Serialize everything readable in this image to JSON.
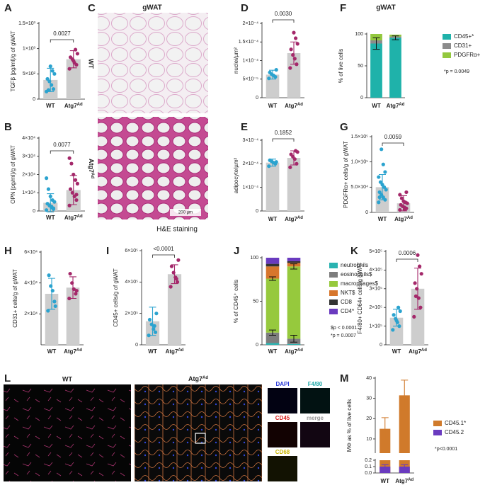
{
  "chart_data": [
    {
      "type": "bar_dots",
      "label": "A",
      "ylabel": "TGFβ [pg/ml]/g of gWAT",
      "categories": [
        "WT",
        "Atg7"
      ],
      "category_sup": [
        null,
        "Ad"
      ],
      "colors": [
        "#2ba3cf",
        "#a4286a"
      ],
      "values": [
        380,
        790
      ],
      "errors": [
        230,
        170
      ],
      "points": [
        [
          150,
          200,
          280,
          350,
          400,
          500,
          560,
          650,
          180
        ],
        [
          600,
          680,
          720,
          790,
          830,
          900,
          980,
          760
        ]
      ],
      "ylim": [
        0,
        1500
      ],
      "yticks": [
        0,
        {
          "value": 500,
          "label": "5×10²"
        },
        {
          "value": 1000,
          "label": "1×10³"
        },
        {
          "value": 1500,
          "label": "1.5×10³"
        }
      ],
      "p_value": "0.0027"
    },
    {
      "type": "bar_dots",
      "label": "B",
      "ylabel": "OPN [pg/ml]/g of gWAT",
      "categories": [
        "WT",
        "Atg7"
      ],
      "category_sup": [
        null,
        "Ad"
      ],
      "colors": [
        "#2ba3cf",
        "#a4286a"
      ],
      "values": [
        4500,
        11500
      ],
      "errors": [
        5000,
        8000
      ],
      "points": [
        [
          500,
          1000,
          2000,
          3000,
          4000,
          5000,
          6000,
          8000,
          12000,
          18000,
          1500,
          2500
        ],
        [
          3000,
          6000,
          8000,
          10000,
          12000,
          15000,
          17000,
          20000,
          26000,
          29000,
          9000
        ]
      ],
      "ylim": [
        0,
        40000
      ],
      "yticks": [
        0,
        {
          "value": 10000,
          "label": "1×10⁴"
        },
        {
          "value": 20000,
          "label": "2×10⁴"
        },
        {
          "value": 30000,
          "label": "3×10⁴"
        },
        {
          "value": 40000,
          "label": "4×10⁴"
        }
      ],
      "p_value": "0.0077"
    },
    {
      "type": "bar_dots",
      "label": "D",
      "ylabel": "nuclei/µm²",
      "categories": [
        "WT",
        "Atg7"
      ],
      "category_sup": [
        null,
        "Ad"
      ],
      "colors": [
        "#2ba3cf",
        "#a4286a"
      ],
      "values": [
        6.2e-05,
        0.00012
      ],
      "errors": [
        1.2e-05,
        3e-05
      ],
      "points": [
        [
          5.2e-05,
          5.6e-05,
          6e-05,
          6.3e-05,
          6.8e-05,
          7.5e-05
        ],
        [
          8e-05,
          9e-05,
          0.000105,
          0.000115,
          0.00013,
          0.000145,
          0.00016,
          0.000175
        ]
      ],
      "ylim": [
        0,
        0.0002
      ],
      "yticks": [
        0,
        {
          "value": 5e-05,
          "label": "5×10⁻⁵"
        },
        {
          "value": 0.0001,
          "label": "1×10⁻⁴"
        },
        {
          "value": 0.00015,
          "label": "1.5×10⁻⁴"
        },
        {
          "value": 0.0002,
          "label": "2×10⁻⁴"
        }
      ],
      "p_value": "0.0030"
    },
    {
      "type": "bar_dots",
      "label": "E",
      "ylabel": "adipocyte/µm²",
      "categories": [
        "WT",
        "Atg7"
      ],
      "category_sup": [
        null,
        "Ad"
      ],
      "colors": [
        "#2ba3cf",
        "#a4286a"
      ],
      "values": [
        0.000205,
        0.000225
      ],
      "errors": [
        1.5e-05,
        3e-05
      ],
      "points": [
        [
          0.00019,
          0.0002,
          0.000205,
          0.00021,
          0.000215,
          0.000208
        ],
        [
          0.000185,
          0.0002,
          0.00022,
          0.00023,
          0.00024,
          0.00025,
          0.000255
        ]
      ],
      "ylim": [
        0,
        0.0003
      ],
      "yticks": [
        0,
        {
          "value": 0.0001,
          "label": "1×10⁻⁴"
        },
        {
          "value": 0.0002,
          "label": "2×10⁻⁴"
        },
        {
          "value": 0.0003,
          "label": "3×10⁻⁴"
        }
      ],
      "p_value": "0.1852"
    },
    {
      "type": "stacked_bar",
      "label": "F",
      "title": "gWAT",
      "ylabel": "% of live cells",
      "categories": [
        "WT",
        "Atg7"
      ],
      "category_sup": [
        null,
        "Ad"
      ],
      "series": [
        {
          "name": "CD45+*",
          "color": "#1fb2aa",
          "values": [
            85,
            94
          ],
          "errors": [
            9,
            3
          ]
        },
        {
          "name": "CD31+",
          "color": "#8c8c8c",
          "values": [
            5,
            2
          ]
        },
        {
          "name": "PDGFRα+",
          "color": "#93c83e",
          "values": [
            10,
            3
          ]
        }
      ],
      "ylim": [
        0,
        100
      ],
      "yticks": [
        0,
        50,
        100
      ],
      "notes": [
        "*p = 0.0049"
      ]
    },
    {
      "type": "bar_dots",
      "label": "G",
      "ylabel": "PDGFRα+ cells/g of gWAT",
      "categories": [
        "WT",
        "Atg7"
      ],
      "category_sup": [
        null,
        "Ad"
      ],
      "colors": [
        "#2ba3cf",
        "#a4286a"
      ],
      "values": [
        50000,
        18000
      ],
      "errors": [
        25000,
        15000
      ],
      "points": [
        [
          20000,
          25000,
          30000,
          35000,
          40000,
          45000,
          50000,
          55000,
          60000,
          70000,
          80000,
          95000,
          125000,
          30000
        ],
        [
          5000,
          8000,
          10000,
          12000,
          15000,
          18000,
          20000,
          22000,
          28000,
          35000,
          40000,
          6000
        ]
      ],
      "ylim": [
        0,
        150000
      ],
      "yticks": [
        0,
        {
          "value": 50000,
          "label": "5.0×10⁴"
        },
        {
          "value": 100000,
          "label": "1.0×10⁵"
        },
        {
          "value": 150000,
          "label": "1.5×10⁵"
        }
      ],
      "p_value": "0.0059"
    },
    {
      "type": "bar_dots",
      "label": "H",
      "ylabel": "CD31+ cells/g of gWAT",
      "categories": [
        "WT",
        "Atg7"
      ],
      "category_sup": [
        null,
        "Ad"
      ],
      "colors": [
        "#2ba3cf",
        "#a4286a"
      ],
      "values": [
        33000,
        37000
      ],
      "errors": [
        10000,
        7000
      ],
      "points": [
        [
          22000,
          28000,
          35000,
          38000,
          45000,
          25000
        ],
        [
          30000,
          33000,
          36000,
          40000,
          46000,
          35000
        ]
      ],
      "ylim": [
        0,
        60000
      ],
      "yticks": [
        {
          "value": 20000,
          "label": "2×10⁴"
        },
        {
          "value": 40000,
          "label": "4×10⁴"
        },
        {
          "value": 60000,
          "label": "6×10⁴"
        }
      ]
    },
    {
      "type": "bar_dots",
      "label": "I",
      "ylabel": "CD45+ cells/g of gWAT",
      "categories": [
        "WT",
        "Atg7"
      ],
      "category_sup": [
        null,
        "Ad"
      ],
      "colors": [
        "#2ba3cf",
        "#a4286a"
      ],
      "values": [
        150000,
        450000
      ],
      "errors": [
        90000,
        60000
      ],
      "points": [
        [
          60000,
          80000,
          100000,
          130000,
          160000,
          200000,
          120000
        ],
        [
          370000,
          400000,
          430000,
          460000,
          500000,
          540000,
          420000
        ]
      ],
      "ylim": [
        0,
        600000
      ],
      "yticks": [
        0,
        {
          "value": 200000,
          "label": "2×10⁵"
        },
        {
          "value": 400000,
          "label": "4×10⁵"
        },
        {
          "value": 600000,
          "label": "6×10⁵"
        }
      ],
      "p_value": "<0.0001"
    },
    {
      "type": "stacked_bar",
      "label": "J",
      "ylabel": "% of CD45⁺ cells",
      "categories": [
        "WT",
        "Atg7"
      ],
      "category_sup": [
        null,
        "Ad"
      ],
      "series": [
        {
          "name": "neutrophils",
          "color": "#2ab3b1",
          "values": [
            2,
            1
          ]
        },
        {
          "name": "eosinophils$",
          "color": "#7d7d7d",
          "values": [
            12,
            6
          ],
          "errors": [
            3,
            4
          ]
        },
        {
          "name": "macrophages$",
          "color": "#96c93d",
          "values": [
            62,
            83
          ],
          "errors": [
            2,
            3
          ]
        },
        {
          "name": "NKT$",
          "color": "#d7762c",
          "values": [
            14,
            4
          ]
        },
        {
          "name": "CD8",
          "color": "#333333",
          "values": [
            3,
            2
          ]
        },
        {
          "name": "CD4*",
          "color": "#6a3bbf",
          "values": [
            7,
            4
          ]
        }
      ],
      "ylim": [
        0,
        100
      ],
      "yticks": [
        0,
        50,
        100
      ],
      "notes": [
        "$p < 0.0001",
        "*p = 0.0007"
      ]
    },
    {
      "type": "bar_dots",
      "label": "K",
      "ylabel": "F4/80+ CD64+ cells/g gWAT",
      "categories": [
        "WT",
        "Atg7"
      ],
      "category_sup": [
        null,
        "Ad"
      ],
      "colors": [
        "#2ba3cf",
        "#a4286a"
      ],
      "values": [
        145000,
        300000
      ],
      "errors": [
        45000,
        110000
      ],
      "points": [
        [
          80000,
          100000,
          120000,
          140000,
          160000,
          180000,
          200000,
          130000
        ],
        [
          150000,
          200000,
          250000,
          300000,
          330000,
          380000,
          420000,
          480000,
          260000
        ]
      ],
      "ylim": [
        0,
        500000
      ],
      "yticks": [
        0,
        {
          "value": 100000,
          "label": "1×10⁵"
        },
        {
          "value": 200000,
          "label": "2×10⁵"
        },
        {
          "value": 300000,
          "label": "3×10⁵"
        },
        {
          "value": 400000,
          "label": "4×10⁵"
        },
        {
          "value": 500000,
          "label": "5×10⁵"
        }
      ],
      "p_value": "0.0006"
    },
    {
      "type": "broken_bar",
      "label": "M",
      "ylabel": "MΦ as % of live cells",
      "categories": [
        "WT",
        "Atg7"
      ],
      "category_sup": [
        null,
        "Ad"
      ],
      "series": [
        {
          "name": "CD45.1*",
          "color": "#d07a2b",
          "values": [
            15,
            31.5
          ],
          "errors": [
            5.5,
            7.5
          ]
        },
        {
          "name": "CD45.2",
          "color": "#6a3bbf",
          "values": [
            0.1,
            0.1
          ],
          "errors": [
            0.03,
            0.03
          ]
        }
      ],
      "ylim_upper": [
        3,
        40
      ],
      "yticks_upper": [
        10,
        20,
        30,
        40
      ],
      "ylim_lower": [
        0,
        0.2
      ],
      "yticks_lower": [
        {
          "value": 0,
          "label": "0.0"
        },
        {
          "value": 0.1,
          "label": "0.1"
        },
        {
          "value": 0.2,
          "label": "0.2"
        }
      ],
      "notes": [
        "*p<0.0001"
      ]
    }
  ],
  "images": {
    "c": {
      "label": "C",
      "title": "gWAT",
      "rows": [
        {
          "text": "WT"
        },
        {
          "text": "Atg7",
          "sup": "Ad"
        }
      ],
      "scale": "200 µm",
      "caption": "H&E staining"
    },
    "l": {
      "label": "L",
      "panels": [
        {
          "text": "WT"
        },
        {
          "text": "Atg7",
          "sup": "Ad"
        }
      ],
      "channels": [
        "DAPI",
        "F4/80",
        "CD45",
        "merge",
        "CD68"
      ]
    }
  }
}
